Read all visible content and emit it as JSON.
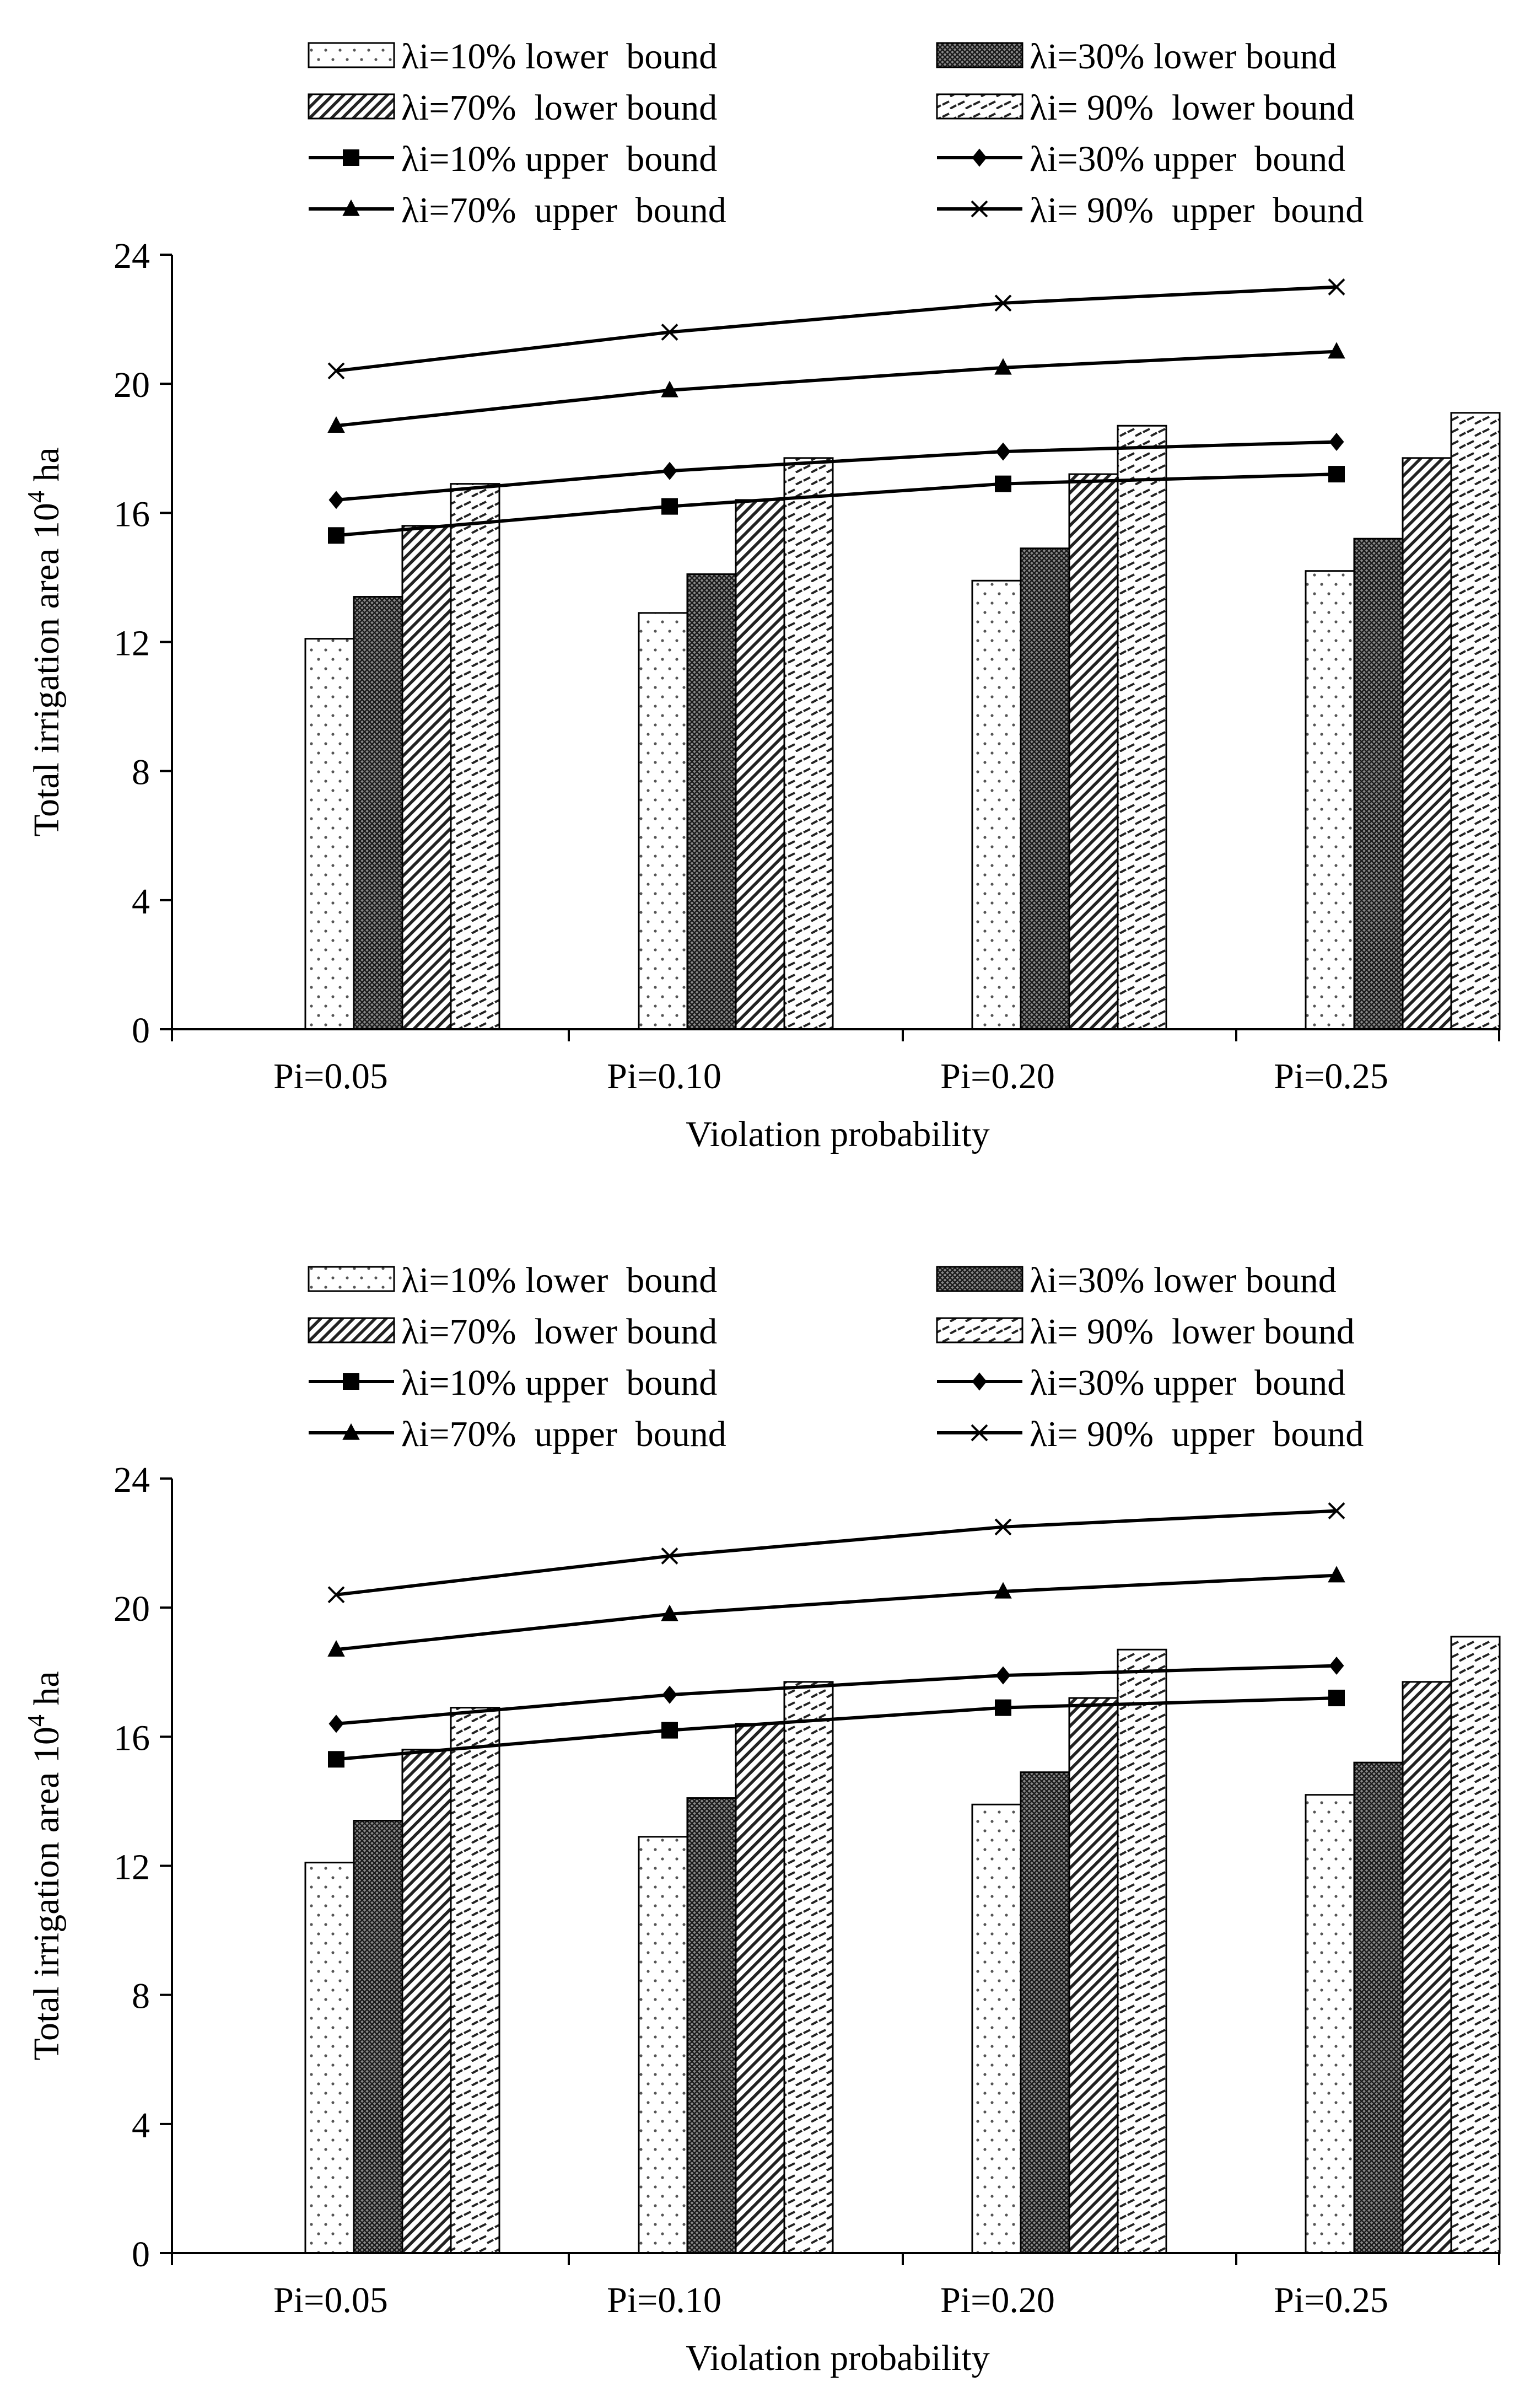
{
  "chart_data": [
    {
      "type": "bar",
      "panel": "top",
      "categories": [
        "Pi=0.05",
        "Pi=0.10",
        "Pi=0.20",
        "Pi=0.25"
      ],
      "xlabel": "Violation probability",
      "ylabel_main": "Total irrigation area 10",
      "ylabel_sup": "4",
      "ylabel_unit": " ha",
      "ylim": [
        0,
        24
      ],
      "yticks": [
        "0",
        "4",
        "8",
        "12",
        "16",
        "20",
        "24"
      ],
      "grid": false,
      "legend_position": "top",
      "bar_series": [
        {
          "name": "λi=10% lower  bound",
          "pattern": "dots-sparse",
          "values": [
            12.1,
            12.9,
            13.9,
            14.2
          ]
        },
        {
          "name": "λi=30% lower bound",
          "pattern": "crosshatch-dense",
          "values": [
            13.4,
            14.1,
            14.9,
            15.2
          ]
        },
        {
          "name": "λi=70%  lower bound",
          "pattern": "diagonal",
          "values": [
            15.6,
            16.4,
            17.2,
            17.7
          ]
        },
        {
          "name": "λi= 90%  lower bound",
          "pattern": "dashes",
          "values": [
            16.9,
            17.7,
            18.7,
            19.1
          ]
        }
      ],
      "line_series": [
        {
          "name": "λi=10% upper  bound",
          "marker": "square",
          "values": [
            15.3,
            16.2,
            16.9,
            17.2
          ]
        },
        {
          "name": "λi=30% upper  bound",
          "marker": "diamond",
          "values": [
            16.4,
            17.3,
            17.9,
            18.2
          ]
        },
        {
          "name": "λi=70%  upper  bound",
          "marker": "triangle",
          "values": [
            18.7,
            19.8,
            20.5,
            21.0
          ]
        },
        {
          "name": "λi= 90%  upper  bound",
          "marker": "x",
          "values": [
            20.4,
            21.6,
            22.5,
            23.0
          ]
        }
      ]
    },
    {
      "type": "bar",
      "panel": "bottom",
      "categories": [
        "Pi=0.05",
        "Pi=0.10",
        "Pi=0.20",
        "Pi=0.25"
      ],
      "xlabel": "Violation probability",
      "ylabel_main": "Total irrigation area 10",
      "ylabel_sup": "4",
      "ylabel_unit": " ha",
      "ylim": [
        0,
        24
      ],
      "yticks": [
        "0",
        "4",
        "8",
        "12",
        "16",
        "20",
        "24"
      ],
      "grid": false,
      "legend_position": "top",
      "bar_series": [
        {
          "name": "λi=10% lower  bound",
          "pattern": "dots-sparse",
          "values": [
            12.1,
            12.9,
            13.9,
            14.2
          ]
        },
        {
          "name": "λi=30% lower bound",
          "pattern": "crosshatch-dense",
          "values": [
            13.4,
            14.1,
            14.9,
            15.2
          ]
        },
        {
          "name": "λi=70%  lower bound",
          "pattern": "diagonal",
          "values": [
            15.6,
            16.4,
            17.2,
            17.7
          ]
        },
        {
          "name": "λi= 90%  lower bound",
          "pattern": "dashes",
          "values": [
            16.9,
            17.7,
            18.7,
            19.1
          ]
        }
      ],
      "line_series": [
        {
          "name": "λi=10% upper  bound",
          "marker": "square",
          "values": [
            15.3,
            16.2,
            16.9,
            17.2
          ]
        },
        {
          "name": "λi=30% upper  bound",
          "marker": "diamond",
          "values": [
            16.4,
            17.3,
            17.9,
            18.2
          ]
        },
        {
          "name": "λi=70%  upper  bound",
          "marker": "triangle",
          "values": [
            18.7,
            19.8,
            20.5,
            21.0
          ]
        },
        {
          "name": "λi= 90%  upper  bound",
          "marker": "x",
          "values": [
            20.4,
            21.6,
            22.5,
            23.0
          ]
        }
      ]
    }
  ]
}
